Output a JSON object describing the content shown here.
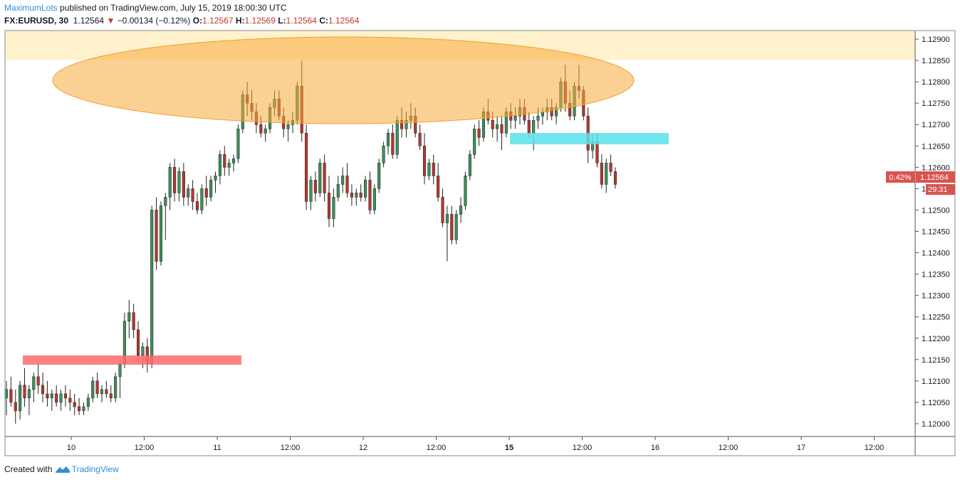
{
  "header": {
    "author": "MaximumLots",
    "published_text": " published on TradingView.com, July 15, 2019 18:00:30 UTC",
    "symbol": "FX:EURUSD, 30",
    "price": "1.12564",
    "change": "−0.00134 (−0.12%)",
    "open_label": "O:",
    "open": "1.12567",
    "high_label": "H:",
    "high": "1.12569",
    "low_label": "L:",
    "low": "1.12564",
    "close_label": "C:",
    "close": "1.12564"
  },
  "footer": {
    "created_with": "Created with",
    "brand": "TradingView",
    "logo_icon": "tradingview-logo-icon"
  },
  "price_tag": {
    "percent": "0.42%",
    "price": "1.12564",
    "countdown": "29:31"
  },
  "colors": {
    "up": "#26a69a",
    "up_body": "#3c8f5a",
    "down": "#b5362f",
    "zone_top": "#fff2cc",
    "ellipse": "#f7a93b",
    "blue_zone": "#5ae0ea",
    "red_zone": "#ff6b6b",
    "tag": "#d9534f"
  },
  "chart_data": {
    "type": "candlestick",
    "title": "",
    "xlabel": "",
    "ylabel": "",
    "ylim": [
      1.1197,
      1.1292
    ],
    "y_ticks": [
      "1.12000",
      "1.12050",
      "1.12100",
      "1.12150",
      "1.12200",
      "1.12250",
      "1.12300",
      "1.12350",
      "1.12400",
      "1.12450",
      "1.12500",
      "1.12550",
      "1.12600",
      "1.12650",
      "1.12700",
      "1.12750",
      "1.12800",
      "1.12850",
      "1.12900"
    ],
    "x_ticks": [
      "10",
      "12:00",
      "11",
      "12:00",
      "12",
      "12:00",
      "15",
      "12:00",
      "16",
      "12:00",
      "17",
      "12:00"
    ],
    "grid": false,
    "series": [
      {
        "values": [
          [
            1.1206,
            1.121,
            1.1202,
            1.1208
          ],
          [
            1.1208,
            1.1211,
            1.1204,
            1.1205
          ],
          [
            1.1205,
            1.1208,
            1.12,
            1.1203
          ],
          [
            1.1203,
            1.121,
            1.1201,
            1.1209
          ],
          [
            1.1209,
            1.1213,
            1.1204,
            1.1206
          ],
          [
            1.1206,
            1.1209,
            1.1202,
            1.1208
          ],
          [
            1.1208,
            1.1212,
            1.1205,
            1.1211
          ],
          [
            1.1211,
            1.1214,
            1.1207,
            1.1209
          ],
          [
            1.1209,
            1.1212,
            1.1205,
            1.1207
          ],
          [
            1.1207,
            1.121,
            1.1204,
            1.1206
          ],
          [
            1.1206,
            1.1208,
            1.1203,
            1.1207
          ],
          [
            1.1207,
            1.1209,
            1.1204,
            1.1205
          ],
          [
            1.1205,
            1.1208,
            1.1203,
            1.1207
          ],
          [
            1.1207,
            1.1209,
            1.1204,
            1.1206
          ],
          [
            1.1206,
            1.1208,
            1.1203,
            1.1205
          ],
          [
            1.1205,
            1.1207,
            1.1202,
            1.1204
          ],
          [
            1.1204,
            1.1206,
            1.1202,
            1.1203
          ],
          [
            1.1203,
            1.1205,
            1.1202,
            1.1204
          ],
          [
            1.1204,
            1.1207,
            1.1203,
            1.1206
          ],
          [
            1.1206,
            1.1211,
            1.1205,
            1.121
          ],
          [
            1.121,
            1.1212,
            1.1206,
            1.1207
          ],
          [
            1.1207,
            1.1209,
            1.1205,
            1.1208
          ],
          [
            1.1208,
            1.121,
            1.1206,
            1.1207
          ],
          [
            1.1207,
            1.1209,
            1.1205,
            1.1206
          ],
          [
            1.1206,
            1.1212,
            1.1205,
            1.1211
          ],
          [
            1.1211,
            1.1215,
            1.1206,
            1.1214
          ],
          [
            1.1214,
            1.1226,
            1.1213,
            1.1224
          ],
          [
            1.1224,
            1.1229,
            1.122,
            1.1226
          ],
          [
            1.1226,
            1.1228,
            1.122,
            1.1222
          ],
          [
            1.1222,
            1.1224,
            1.1214,
            1.1216
          ],
          [
            1.1216,
            1.1219,
            1.1213,
            1.1218
          ],
          [
            1.1218,
            1.122,
            1.1212,
            1.1214
          ],
          [
            1.1214,
            1.1251,
            1.1213,
            1.125
          ],
          [
            1.125,
            1.1253,
            1.1236,
            1.1238
          ],
          [
            1.1238,
            1.1252,
            1.1237,
            1.1251
          ],
          [
            1.1251,
            1.1254,
            1.1243,
            1.1253
          ],
          [
            1.1253,
            1.1261,
            1.125,
            1.126
          ],
          [
            1.126,
            1.1262,
            1.1252,
            1.1254
          ],
          [
            1.1254,
            1.126,
            1.1252,
            1.1259
          ],
          [
            1.1259,
            1.1261,
            1.1251,
            1.1253
          ],
          [
            1.1253,
            1.1256,
            1.1251,
            1.1255
          ],
          [
            1.1255,
            1.1257,
            1.125,
            1.1252
          ],
          [
            1.1252,
            1.1254,
            1.1249,
            1.125
          ],
          [
            1.125,
            1.1256,
            1.1249,
            1.1255
          ],
          [
            1.1255,
            1.1258,
            1.1251,
            1.1253
          ],
          [
            1.1253,
            1.1258,
            1.1252,
            1.1257
          ],
          [
            1.1257,
            1.1259,
            1.1254,
            1.1258
          ],
          [
            1.1258,
            1.1264,
            1.1256,
            1.1263
          ],
          [
            1.1263,
            1.1265,
            1.1258,
            1.126
          ],
          [
            1.126,
            1.1262,
            1.1258,
            1.1261
          ],
          [
            1.1261,
            1.1263,
            1.1259,
            1.1262
          ],
          [
            1.1262,
            1.127,
            1.1261,
            1.1269
          ],
          [
            1.1269,
            1.1278,
            1.1268,
            1.1277
          ],
          [
            1.1277,
            1.128,
            1.1272,
            1.1275
          ],
          [
            1.1275,
            1.1278,
            1.1271,
            1.1273
          ],
          [
            1.1273,
            1.1275,
            1.1268,
            1.127
          ],
          [
            1.127,
            1.1272,
            1.1267,
            1.1268
          ],
          [
            1.1268,
            1.127,
            1.1266,
            1.1269
          ],
          [
            1.1269,
            1.1275,
            1.1268,
            1.1274
          ],
          [
            1.1274,
            1.1278,
            1.1272,
            1.1276
          ],
          [
            1.1276,
            1.1278,
            1.1271,
            1.1272
          ],
          [
            1.1272,
            1.1274,
            1.1267,
            1.1269
          ],
          [
            1.1269,
            1.1271,
            1.1266,
            1.127
          ],
          [
            1.127,
            1.1273,
            1.1268,
            1.1271
          ],
          [
            1.1271,
            1.128,
            1.127,
            1.1279
          ],
          [
            1.1279,
            1.1285,
            1.1266,
            1.1268
          ],
          [
            1.1268,
            1.127,
            1.125,
            1.1252
          ],
          [
            1.1252,
            1.1258,
            1.125,
            1.1257
          ],
          [
            1.1257,
            1.1259,
            1.1252,
            1.1254
          ],
          [
            1.1254,
            1.1262,
            1.1253,
            1.1261
          ],
          [
            1.1261,
            1.1263,
            1.1252,
            1.1254
          ],
          [
            1.1254,
            1.1258,
            1.1246,
            1.1248
          ],
          [
            1.1248,
            1.1255,
            1.1246,
            1.1253
          ],
          [
            1.1253,
            1.1258,
            1.1252,
            1.1256
          ],
          [
            1.1256,
            1.126,
            1.1254,
            1.1258
          ],
          [
            1.1258,
            1.1261,
            1.1253,
            1.1254
          ],
          [
            1.1254,
            1.1256,
            1.1251,
            1.1253
          ],
          [
            1.1253,
            1.1255,
            1.1251,
            1.1254
          ],
          [
            1.1254,
            1.1256,
            1.1252,
            1.1253
          ],
          [
            1.1253,
            1.1258,
            1.1252,
            1.1257
          ],
          [
            1.1257,
            1.1259,
            1.1249,
            1.125
          ],
          [
            1.125,
            1.1256,
            1.1249,
            1.1255
          ],
          [
            1.1255,
            1.1262,
            1.1254,
            1.1261
          ],
          [
            1.1261,
            1.1266,
            1.126,
            1.1265
          ],
          [
            1.1265,
            1.1269,
            1.1263,
            1.1268
          ],
          [
            1.1268,
            1.127,
            1.1262,
            1.1263
          ],
          [
            1.1263,
            1.1272,
            1.1262,
            1.1271
          ],
          [
            1.1271,
            1.1274,
            1.1267,
            1.1269
          ],
          [
            1.1269,
            1.1273,
            1.1267,
            1.1271
          ],
          [
            1.1271,
            1.1275,
            1.1269,
            1.1272
          ],
          [
            1.1272,
            1.1274,
            1.1267,
            1.1268
          ],
          [
            1.1268,
            1.127,
            1.1264,
            1.1265
          ],
          [
            1.1265,
            1.1268,
            1.1256,
            1.1258
          ],
          [
            1.1258,
            1.1262,
            1.1257,
            1.1261
          ],
          [
            1.1261,
            1.1263,
            1.1256,
            1.1258
          ],
          [
            1.1258,
            1.1261,
            1.1252,
            1.1253
          ],
          [
            1.1253,
            1.1255,
            1.1246,
            1.1247
          ],
          [
            1.1247,
            1.1251,
            1.1238,
            1.1249
          ],
          [
            1.1249,
            1.1251,
            1.1242,
            1.1243
          ],
          [
            1.1243,
            1.125,
            1.1242,
            1.1249
          ],
          [
            1.1249,
            1.1253,
            1.1247,
            1.1251
          ],
          [
            1.1251,
            1.1259,
            1.125,
            1.1258
          ],
          [
            1.1258,
            1.1264,
            1.1257,
            1.1263
          ],
          [
            1.1263,
            1.127,
            1.1262,
            1.1269
          ],
          [
            1.1269,
            1.1271,
            1.1265,
            1.1267
          ],
          [
            1.1267,
            1.1274,
            1.1266,
            1.1273
          ],
          [
            1.1273,
            1.1276,
            1.127,
            1.1271
          ],
          [
            1.1271,
            1.1273,
            1.1267,
            1.1269
          ],
          [
            1.1269,
            1.1272,
            1.1266,
            1.127
          ],
          [
            1.127,
            1.1272,
            1.1264,
            1.1268
          ],
          [
            1.1268,
            1.1274,
            1.1267,
            1.1273
          ],
          [
            1.1273,
            1.1275,
            1.1269,
            1.1271
          ],
          [
            1.1271,
            1.1274,
            1.1269,
            1.1272
          ],
          [
            1.1272,
            1.1276,
            1.127,
            1.1274
          ],
          [
            1.1274,
            1.1276,
            1.127,
            1.1271
          ],
          [
            1.1271,
            1.1273,
            1.1267,
            1.1268
          ],
          [
            1.1268,
            1.1272,
            1.1264,
            1.1271
          ],
          [
            1.1271,
            1.1274,
            1.1269,
            1.1272
          ],
          [
            1.1272,
            1.1274,
            1.127,
            1.1273
          ],
          [
            1.1273,
            1.1276,
            1.1271,
            1.1274
          ],
          [
            1.1274,
            1.1276,
            1.1271,
            1.1272
          ],
          [
            1.1272,
            1.1275,
            1.127,
            1.1274
          ],
          [
            1.1274,
            1.1281,
            1.1273,
            1.128
          ],
          [
            1.128,
            1.1284,
            1.1273,
            1.1275
          ],
          [
            1.1275,
            1.1278,
            1.1271,
            1.1272
          ],
          [
            1.1272,
            1.128,
            1.1271,
            1.1279
          ],
          [
            1.1279,
            1.1284,
            1.1276,
            1.1278
          ],
          [
            1.1278,
            1.1279,
            1.1271,
            1.1272
          ],
          [
            1.1272,
            1.1274,
            1.1261,
            1.1264
          ],
          [
            1.1264,
            1.1268,
            1.1262,
            1.1266
          ],
          [
            1.1266,
            1.1268,
            1.126,
            1.1261
          ],
          [
            1.1261,
            1.1263,
            1.1255,
            1.1256
          ],
          [
            1.1256,
            1.1262,
            1.1254,
            1.1261
          ],
          [
            1.1261,
            1.1263,
            1.1258,
            1.1259
          ],
          [
            1.1259,
            1.126,
            1.1255,
            1.1256
          ]
        ]
      }
    ]
  }
}
